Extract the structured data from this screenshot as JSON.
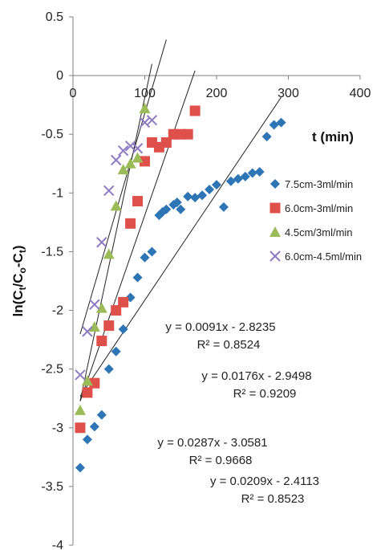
{
  "chart_data": {
    "type": "scatter",
    "title": "",
    "xlabel": "t (min)",
    "ylabel": "ln(Ct/Co-Ct)",
    "xlim": [
      0,
      400
    ],
    "ylim": [
      -4,
      0.5
    ],
    "xticks": [
      "0",
      "100",
      "200",
      "300",
      "400"
    ],
    "yticks": [
      "0.5",
      "0",
      "-0.5",
      "-1",
      "-1.5",
      "-2",
      "-2.5",
      "-3",
      "-3.5",
      "-4"
    ],
    "grid": false,
    "legend_position": "right",
    "series": [
      {
        "name": "7.5cm-3ml/min",
        "marker": "diamond",
        "color": "#2e75b6",
        "points": [
          [
            10,
            -3.34
          ],
          [
            20,
            -3.1
          ],
          [
            30,
            -2.99
          ],
          [
            40,
            -2.89
          ],
          [
            50,
            -2.5
          ],
          [
            60,
            -2.35
          ],
          [
            70,
            -2.16
          ],
          [
            80,
            -1.89
          ],
          [
            90,
            -1.72
          ],
          [
            100,
            -1.55
          ],
          [
            110,
            -1.5
          ],
          [
            120,
            -1.19
          ],
          [
            125,
            -1.16
          ],
          [
            130,
            -1.14
          ],
          [
            140,
            -1.1
          ],
          [
            145,
            -1.08
          ],
          [
            150,
            -1.14
          ],
          [
            160,
            -1.03
          ],
          [
            170,
            -1.04
          ],
          [
            180,
            -1.02
          ],
          [
            190,
            -0.97
          ],
          [
            200,
            -0.93
          ],
          [
            210,
            -1.12
          ],
          [
            220,
            -0.9
          ],
          [
            230,
            -0.88
          ],
          [
            240,
            -0.86
          ],
          [
            250,
            -0.83
          ],
          [
            260,
            -0.82
          ],
          [
            270,
            -0.52
          ],
          [
            280,
            -0.42
          ],
          [
            290,
            -0.4
          ]
        ]
      },
      {
        "name": "6.0cm-3ml/min",
        "marker": "square",
        "color": "#e0504a",
        "points": [
          [
            10,
            -3.0
          ],
          [
            20,
            -2.7
          ],
          [
            30,
            -2.62
          ],
          [
            40,
            -2.26
          ],
          [
            50,
            -2.13
          ],
          [
            60,
            -2.0
          ],
          [
            70,
            -1.93
          ],
          [
            80,
            -1.26
          ],
          [
            90,
            -1.07
          ],
          [
            100,
            -0.73
          ],
          [
            110,
            -0.57
          ],
          [
            120,
            -0.61
          ],
          [
            130,
            -0.57
          ],
          [
            140,
            -0.5
          ],
          [
            150,
            -0.5
          ],
          [
            160,
            -0.5
          ],
          [
            170,
            -0.3
          ]
        ]
      },
      {
        "name": "4.5cm/3ml/min",
        "marker": "triangle",
        "color": "#9bbb59",
        "points": [
          [
            10,
            -2.85
          ],
          [
            20,
            -2.6
          ],
          [
            30,
            -2.14
          ],
          [
            40,
            -1.98
          ],
          [
            50,
            -1.52
          ],
          [
            60,
            -1.11
          ],
          [
            70,
            -0.8
          ],
          [
            80,
            -0.75
          ],
          [
            90,
            -0.7
          ],
          [
            100,
            -0.28
          ]
        ]
      },
      {
        "name": "6.0cm-4.5ml/min",
        "marker": "x",
        "color": "#8e7cc3",
        "points": [
          [
            10,
            -2.55
          ],
          [
            20,
            -2.18
          ],
          [
            30,
            -1.95
          ],
          [
            40,
            -1.42
          ],
          [
            50,
            -0.98
          ],
          [
            60,
            -0.72
          ],
          [
            70,
            -0.64
          ],
          [
            80,
            -0.6
          ],
          [
            90,
            -0.62
          ],
          [
            100,
            -0.4
          ],
          [
            110,
            -0.38
          ]
        ]
      }
    ],
    "trendlines": [
      {
        "slope": 0.0091,
        "intercept": -2.8235,
        "x_range": [
          10,
          290
        ],
        "equation": "y = 0.0091x - 2.8235",
        "r2": "R² = 0.8524"
      },
      {
        "slope": 0.0176,
        "intercept": -2.9498,
        "x_range": [
          10,
          170
        ],
        "equation": "y = 0.0176x - 2.9498",
        "r2": "R² = 0.9209"
      },
      {
        "slope": 0.0287,
        "intercept": -3.0581,
        "x_range": [
          10,
          110
        ],
        "equation": "y = 0.0287x - 3.0581",
        "r2": "R² = 0.9668"
      },
      {
        "slope": 0.0209,
        "intercept": -2.4113,
        "x_range": [
          10,
          130
        ],
        "equation": "y = 0.0209x - 2.4113",
        "r2": "R² = 0.8523"
      }
    ]
  }
}
